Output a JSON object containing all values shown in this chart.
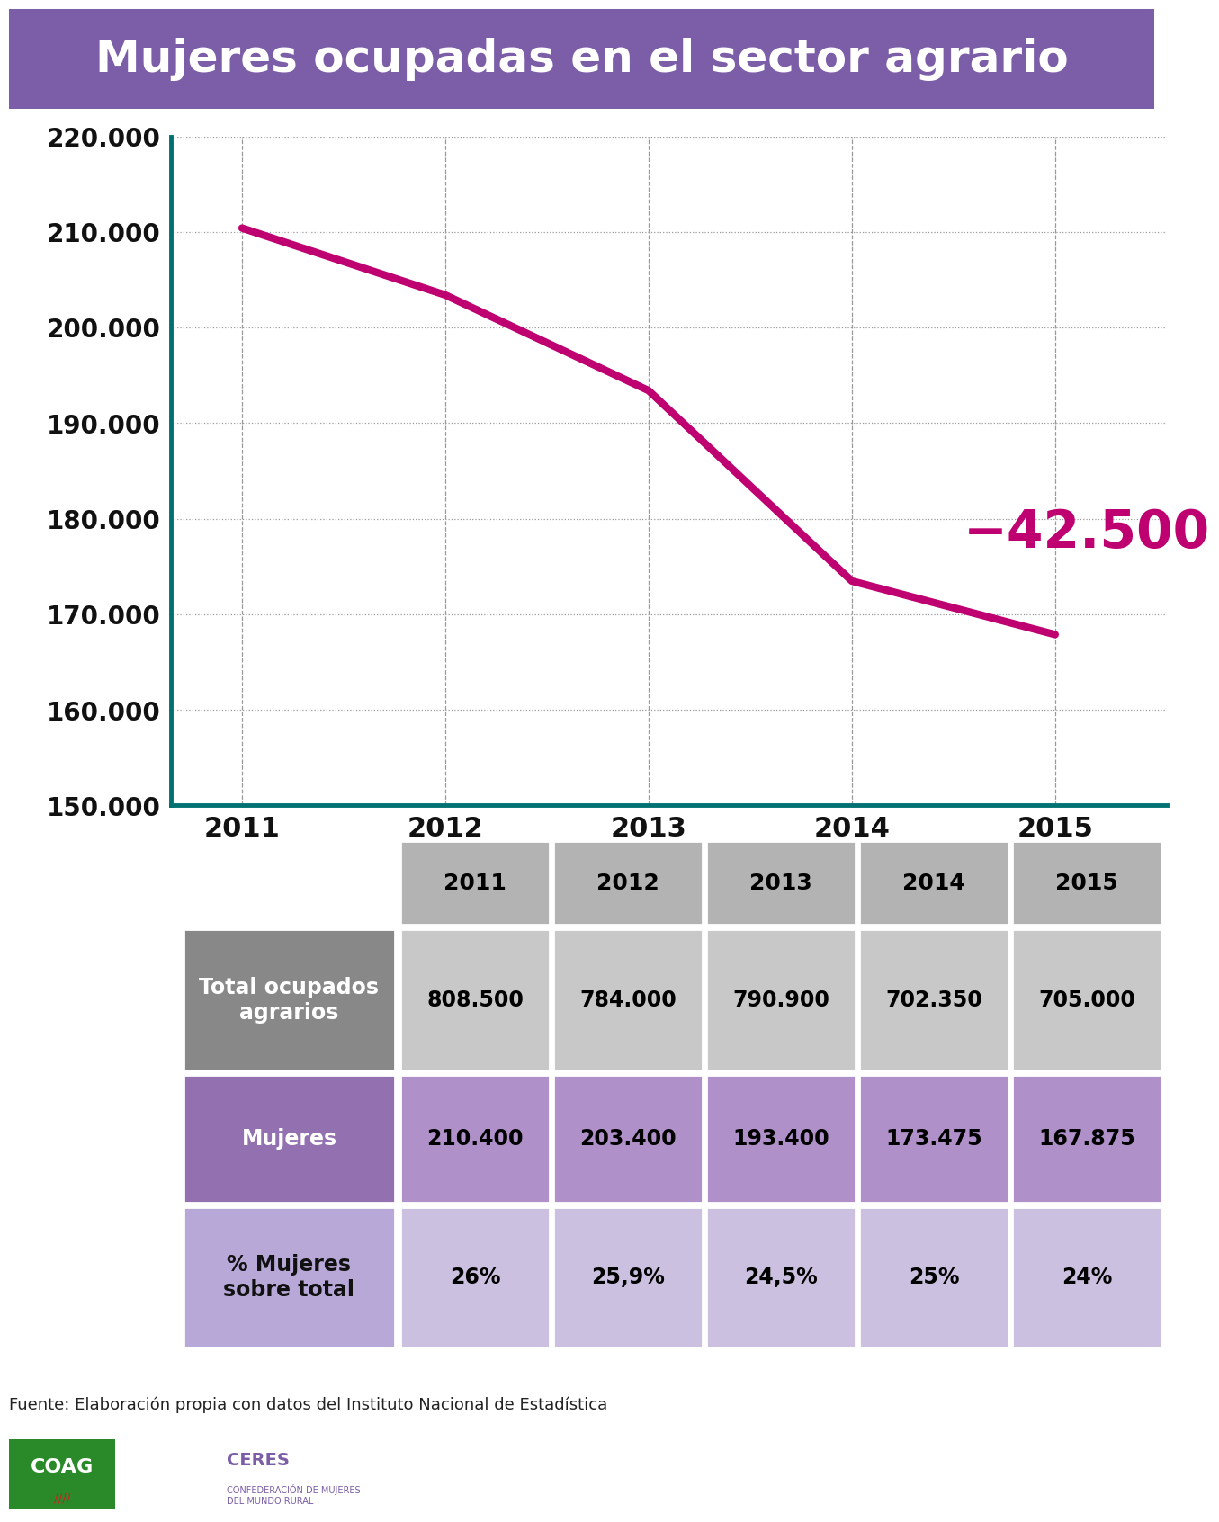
{
  "title": "Mujeres ocupadas en el sector agrario",
  "title_bg_color": "#7b5ea7",
  "title_text_color": "#ffffff",
  "years": [
    2011,
    2012,
    2013,
    2014,
    2015
  ],
  "mujeres_values": [
    210400,
    203400,
    193400,
    173475,
    167875
  ],
  "line_color": "#be0070",
  "axis_color": "#007070",
  "y_min": 150000,
  "y_max": 220000,
  "y_ticks": [
    150000,
    160000,
    170000,
    180000,
    190000,
    200000,
    210000,
    220000
  ],
  "annotation_text": "−42.500",
  "annotation_color": "#be0070",
  "grid_color": "#999999",
  "table_header_bg": "#b3b3b3",
  "table_row1_label_bg": "#888888",
  "table_row1_data_bg": "#c8c8c8",
  "table_row2_label_bg": "#9370b0",
  "table_row2_data_bg": "#b090c8",
  "table_row3_label_bg": "#b8a8d8",
  "table_row3_data_bg": "#ccc0e0",
  "row_labels": [
    "Total ocupados\nagrarios",
    "Mujeres",
    "% Mujeres\nsobre total"
  ],
  "table_years": [
    "2011",
    "2012",
    "2013",
    "2014",
    "2015"
  ],
  "row1_data": [
    "808.500",
    "784.000",
    "790.900",
    "702.350",
    "705.000"
  ],
  "row2_data": [
    "210.400",
    "203.400",
    "193.400",
    "173.475",
    "167.875"
  ],
  "row3_data": [
    "26%",
    "25,9%",
    "24,5%",
    "25%",
    "24%"
  ],
  "source_text": "Fuente: Elaboración propia con datos del Instituto Nacional de Estadística",
  "bg_color": "#ffffff",
  "line_width": 6
}
